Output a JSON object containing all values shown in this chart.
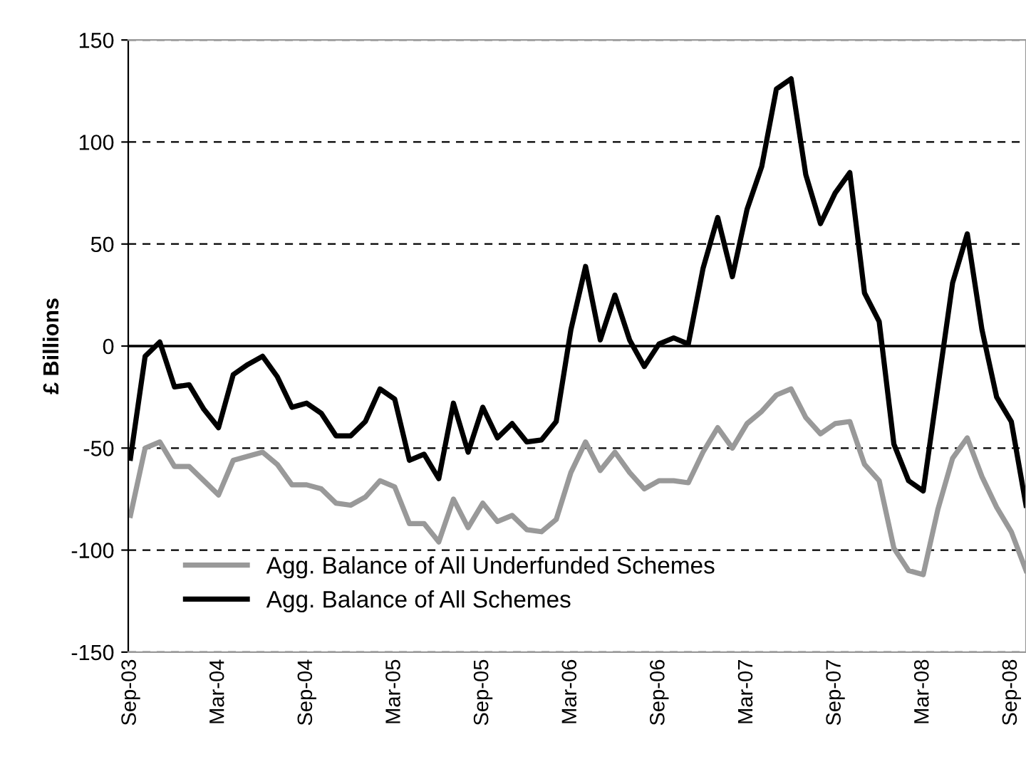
{
  "chart_data": {
    "type": "line",
    "ylabel": "£ Billions",
    "categories": [
      "Sep-03",
      null,
      null,
      null,
      null,
      null,
      "Mar-04",
      null,
      null,
      null,
      null,
      null,
      "Sep-04",
      null,
      null,
      null,
      null,
      null,
      "Mar-05",
      null,
      null,
      null,
      null,
      null,
      "Sep-05",
      null,
      null,
      null,
      null,
      null,
      "Mar-06",
      null,
      null,
      null,
      null,
      null,
      "Sep-06",
      null,
      null,
      null,
      null,
      null,
      "Mar-07",
      null,
      null,
      null,
      null,
      null,
      "Sep-07",
      null,
      null,
      null,
      null,
      null,
      "Mar-08",
      null,
      null,
      null,
      null,
      null,
      "Sep-08",
      null
    ],
    "series": [
      {
        "name": "Agg. Balance of All Underfunded Schemes",
        "color": "#999999",
        "values": [
          -83,
          -50,
          -47,
          -59,
          -59,
          -66,
          -73,
          -56,
          -54,
          -52,
          -58,
          -68,
          -68,
          -70,
          -77,
          -78,
          -74,
          -66,
          -69,
          -87,
          -87,
          -96,
          -75,
          -89,
          -77,
          -86,
          -83,
          -90,
          -91,
          -85,
          -62,
          -47,
          -61,
          -52,
          -62,
          -70,
          -66,
          -66,
          -67,
          -52,
          -40,
          -50,
          -38,
          -32,
          -24,
          -21,
          -35,
          -43,
          -38,
          -37,
          -58,
          -66,
          -99,
          -110,
          -112,
          -80,
          -55,
          -45,
          -64,
          -79,
          -91,
          -110
        ]
      },
      {
        "name": "Agg. Balance of All Schemes",
        "color": "#000000",
        "values": [
          -55,
          -5,
          2,
          -20,
          -19,
          -31,
          -40,
          -14,
          -9,
          -5,
          -15,
          -30,
          -28,
          -33,
          -44,
          -44,
          -37,
          -21,
          -26,
          -56,
          -53,
          -65,
          -28,
          -52,
          -30,
          -45,
          -38,
          -47,
          -46,
          -37,
          8,
          39,
          3,
          25,
          3,
          -10,
          1,
          4,
          1,
          38,
          63,
          34,
          67,
          88,
          126,
          131,
          84,
          60,
          75,
          85,
          26,
          12,
          -48,
          -66,
          -71,
          -20,
          31,
          55,
          8,
          -25,
          -37,
          -78
        ]
      }
    ],
    "ylim": [
      -150,
      150
    ],
    "yticks": [
      -150,
      -100,
      -50,
      0,
      50,
      100,
      150
    ],
    "ref_lines": [
      {
        "axis": "y",
        "value": 0,
        "color": "#000000",
        "line_style": "solid"
      }
    ],
    "grid": "y",
    "legend": "lower left",
    "marker": "none",
    "line_style": "solid"
  }
}
